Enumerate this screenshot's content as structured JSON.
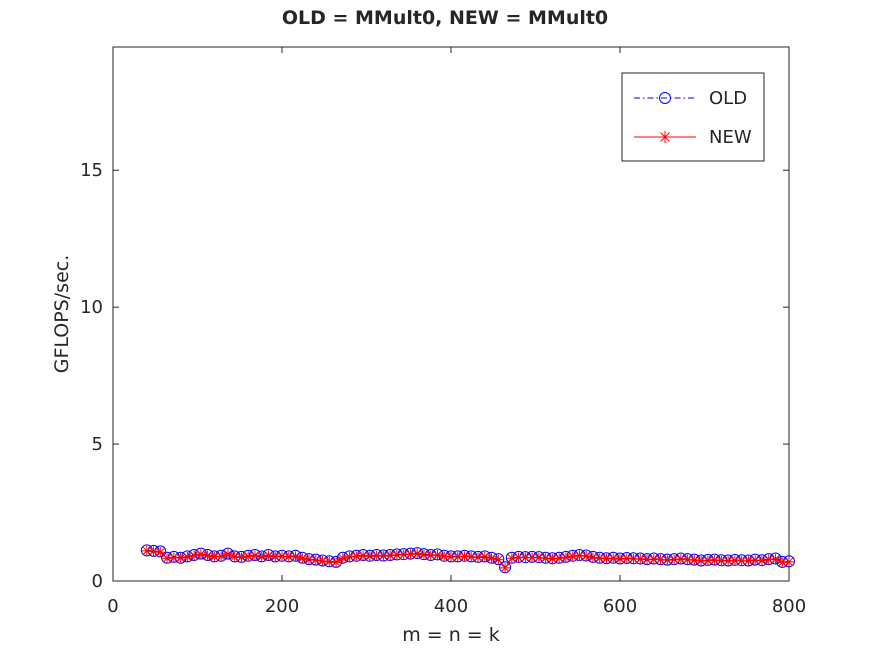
{
  "chart_data": {
    "type": "line",
    "title": "OLD = MMult0, NEW = MMult0",
    "xlabel": "m = n = k",
    "ylabel": "GFLOPS/sec.",
    "xlim": [
      0,
      800
    ],
    "ylim": [
      0,
      19.5
    ],
    "xticks": [
      0,
      200,
      400,
      600,
      800
    ],
    "yticks": [
      0,
      5,
      10,
      15
    ],
    "grid": false,
    "legend_position": "top-right",
    "x": [
      40,
      48,
      56,
      64,
      72,
      80,
      88,
      96,
      104,
      112,
      120,
      128,
      136,
      144,
      152,
      160,
      168,
      176,
      184,
      192,
      200,
      208,
      216,
      224,
      232,
      240,
      248,
      256,
      264,
      272,
      280,
      288,
      296,
      304,
      312,
      320,
      328,
      336,
      344,
      352,
      360,
      368,
      376,
      384,
      392,
      400,
      408,
      416,
      424,
      432,
      440,
      448,
      456,
      464,
      472,
      480,
      488,
      496,
      504,
      512,
      520,
      528,
      536,
      544,
      552,
      560,
      568,
      576,
      584,
      592,
      600,
      608,
      616,
      624,
      632,
      640,
      648,
      656,
      664,
      672,
      680,
      688,
      696,
      704,
      712,
      720,
      728,
      736,
      744,
      752,
      760,
      768,
      776,
      784,
      792,
      800
    ],
    "series": [
      {
        "name": "OLD",
        "color": "#0000ff",
        "marker": "circle",
        "line_style": "dash-dot",
        "values": [
          1.12,
          1.1,
          1.08,
          0.85,
          0.88,
          0.85,
          0.9,
          0.95,
          1.0,
          0.95,
          0.9,
          0.92,
          1.0,
          0.9,
          0.88,
          0.92,
          0.95,
          0.9,
          0.95,
          0.9,
          0.92,
          0.9,
          0.92,
          0.85,
          0.8,
          0.78,
          0.75,
          0.72,
          0.7,
          0.85,
          0.9,
          0.92,
          0.95,
          0.92,
          0.95,
          0.93,
          0.95,
          0.97,
          0.98,
          1.0,
          1.02,
          0.98,
          0.95,
          0.97,
          0.92,
          0.9,
          0.9,
          0.92,
          0.9,
          0.88,
          0.9,
          0.85,
          0.8,
          0.5,
          0.85,
          0.88,
          0.87,
          0.88,
          0.87,
          0.85,
          0.83,
          0.85,
          0.88,
          0.92,
          0.95,
          0.93,
          0.88,
          0.85,
          0.83,
          0.85,
          0.82,
          0.84,
          0.83,
          0.82,
          0.8,
          0.82,
          0.8,
          0.78,
          0.8,
          0.82,
          0.8,
          0.78,
          0.75,
          0.77,
          0.78,
          0.76,
          0.75,
          0.77,
          0.76,
          0.75,
          0.78,
          0.76,
          0.8,
          0.82,
          0.7,
          0.72
        ]
      },
      {
        "name": "NEW",
        "color": "#ff0000",
        "marker": "asterisk",
        "line_style": "solid",
        "values": [
          1.1,
          1.08,
          1.05,
          0.83,
          0.86,
          0.84,
          0.88,
          0.93,
          0.98,
          0.93,
          0.88,
          0.9,
          0.98,
          0.88,
          0.86,
          0.9,
          0.93,
          0.88,
          0.93,
          0.88,
          0.9,
          0.88,
          0.9,
          0.83,
          0.78,
          0.76,
          0.73,
          0.7,
          0.68,
          0.83,
          0.88,
          0.9,
          0.93,
          0.9,
          0.93,
          0.91,
          0.93,
          0.95,
          0.96,
          0.98,
          1.0,
          0.96,
          0.93,
          0.95,
          0.9,
          0.88,
          0.88,
          0.9,
          0.88,
          0.86,
          0.88,
          0.83,
          0.78,
          0.48,
          0.83,
          0.86,
          0.85,
          0.86,
          0.85,
          0.83,
          0.81,
          0.83,
          0.86,
          0.9,
          0.93,
          0.91,
          0.86,
          0.83,
          0.81,
          0.83,
          0.8,
          0.82,
          0.81,
          0.8,
          0.78,
          0.8,
          0.78,
          0.76,
          0.78,
          0.8,
          0.78,
          0.76,
          0.73,
          0.75,
          0.76,
          0.74,
          0.73,
          0.75,
          0.74,
          0.73,
          0.76,
          0.74,
          0.78,
          0.8,
          0.68,
          0.7
        ]
      }
    ]
  }
}
